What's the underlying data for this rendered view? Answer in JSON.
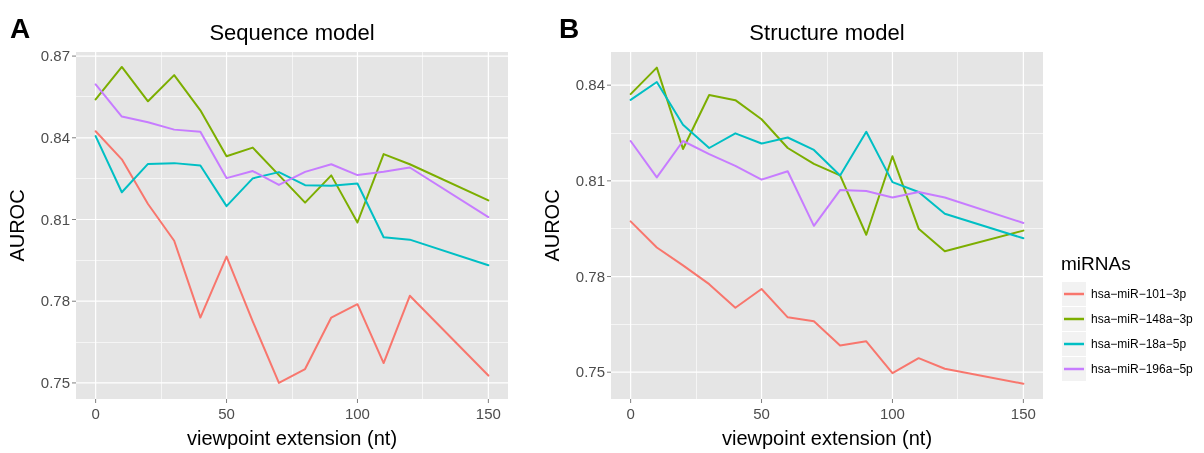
{
  "chart_data": [
    {
      "type": "line",
      "title": "Sequence model",
      "xlabel": "viewpoint extension (nt)",
      "ylabel": "AUROC",
      "annotations": [
        "A"
      ],
      "x": [
        0,
        10,
        20,
        30,
        40,
        50,
        60,
        70,
        80,
        90,
        100,
        110,
        120,
        150
      ],
      "xlim": [
        -7.5,
        157.5
      ],
      "xticks": [
        0,
        {
          "value": 25,
          "label": null
        },
        50,
        {
          "value": 75,
          "label": null
        },
        100,
        {
          "value": 125,
          "label": null
        },
        150
      ],
      "ylim": [
        0.7441,
        0.8715
      ],
      "yticks": [
        0.75,
        {
          "value": 0.765,
          "label": null
        },
        0.78,
        {
          "value": 0.795,
          "label": null
        },
        0.81,
        {
          "value": 0.825,
          "label": null
        },
        0.84,
        {
          "value": 0.855,
          "label": null
        },
        0.87
      ],
      "grid": true,
      "legend": false,
      "series": [
        {
          "color": "#f8766d",
          "values": [
            0.8424,
            0.8321,
            0.8157,
            0.8022,
            0.774,
            0.7964,
            0.7726,
            0.75,
            0.7551,
            0.774,
            0.7789,
            0.7573,
            0.782,
            0.7527
          ]
        },
        {
          "color": "#7cae00",
          "values": [
            0.8541,
            0.866,
            0.8534,
            0.863,
            0.8501,
            0.8332,
            0.8364,
            0.8263,
            0.8162,
            0.8262,
            0.8089,
            0.834,
            0.8303,
            0.817
          ]
        },
        {
          "color": "#00bfc4",
          "values": [
            0.8406,
            0.82,
            0.8304,
            0.8307,
            0.8298,
            0.8149,
            0.8251,
            0.8274,
            0.8226,
            0.8224,
            0.8232,
            0.8035,
            0.8026,
            0.7932
          ]
        },
        {
          "color": "#c77cff",
          "values": [
            0.8596,
            0.8478,
            0.8457,
            0.843,
            0.8422,
            0.8252,
            0.8278,
            0.8227,
            0.8275,
            0.8303,
            0.8263,
            0.8275,
            0.8291,
            0.8109
          ]
        }
      ]
    },
    {
      "type": "line",
      "title": "Structure model",
      "xlabel": "viewpoint extension (nt)",
      "ylabel": "AUROC",
      "annotations": [
        "B"
      ],
      "legend_title": "miRNAs",
      "x": [
        0,
        10,
        20,
        30,
        40,
        50,
        60,
        70,
        80,
        90,
        100,
        110,
        120,
        150
      ],
      "xlim": [
        -7.5,
        157.5
      ],
      "xticks": [
        0,
        {
          "value": 25,
          "label": null
        },
        50,
        {
          "value": 75,
          "label": null
        },
        100,
        {
          "value": 125,
          "label": null
        },
        150
      ],
      "ylim": [
        0.7416,
        0.8504
      ],
      "yticks": [
        0.75,
        {
          "value": 0.765,
          "label": null
        },
        0.78,
        {
          "value": 0.795,
          "label": null
        },
        0.81,
        {
          "value": 0.825,
          "label": null
        },
        0.84
      ],
      "grid": true,
      "legend": "right",
      "series": [
        {
          "name": "hsa−miR−101−3p",
          "color": "#f8766d",
          "values": [
            0.7973,
            0.7891,
            0.7835,
            0.7776,
            0.7702,
            0.7761,
            0.7672,
            0.766,
            0.7584,
            0.7597,
            0.7497,
            0.7544,
            0.7511,
            0.7464
          ]
        },
        {
          "name": "hsa−miR−148a−3p",
          "color": "#7cae00",
          "values": [
            0.8372,
            0.8455,
            0.82,
            0.8369,
            0.8353,
            0.8293,
            0.8203,
            0.8153,
            0.8117,
            0.7931,
            0.8177,
            0.795,
            0.7879,
            0.7944
          ]
        },
        {
          "name": "hsa−miR−18a−5p",
          "color": "#00bfc4",
          "values": [
            0.8354,
            0.841,
            0.8276,
            0.8203,
            0.8249,
            0.8217,
            0.8236,
            0.8197,
            0.8117,
            0.8254,
            0.8096,
            0.8065,
            0.7997,
            0.792
          ]
        },
        {
          "name": "hsa−miR−196a−5p",
          "color": "#c77cff",
          "values": [
            0.8225,
            0.8111,
            0.8225,
            0.8184,
            0.8147,
            0.8104,
            0.813,
            0.7959,
            0.8071,
            0.8068,
            0.8048,
            0.8065,
            0.8048,
            0.7968
          ]
        }
      ]
    }
  ]
}
